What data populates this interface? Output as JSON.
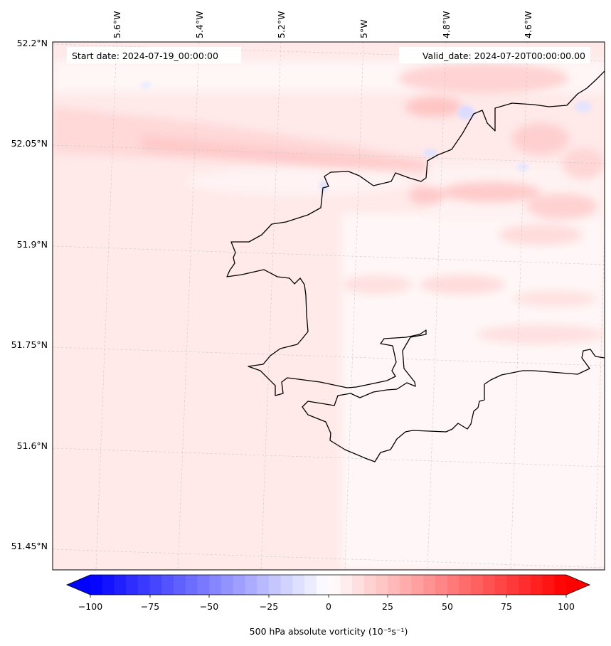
{
  "map": {
    "start_label": "Start date: 2024-07-19_00:00:00",
    "valid_label": "Valid_date: 2024-07-20T00:00:00.00",
    "lon_labels": [
      "5.6°W",
      "5.4°W",
      "5.2°W",
      "5°W",
      "4.8°W",
      "4.6°W"
    ],
    "lat_labels": [
      "52.2°N",
      "52.05°N",
      "51.9°N",
      "51.75°N",
      "51.6°N",
      "51.45°N"
    ],
    "coastline_color": "#000000",
    "gridline_color": "#c8c8c8",
    "land_fill": "#ffffff",
    "sea_fill": "#ffe9e9"
  },
  "colorbar": {
    "title": "500 hPa absolute vorticity (10⁻⁵s⁻¹)",
    "ticks": [
      "−100",
      "−75",
      "−50",
      "−25",
      "0",
      "25",
      "50",
      "75",
      "100"
    ],
    "min": -100,
    "max": 100,
    "levels": 40,
    "cmap": "bwr",
    "extend": "both",
    "low_color": "#0000ff",
    "mid_color": "#ffffff",
    "high_color": "#ff0000"
  }
}
